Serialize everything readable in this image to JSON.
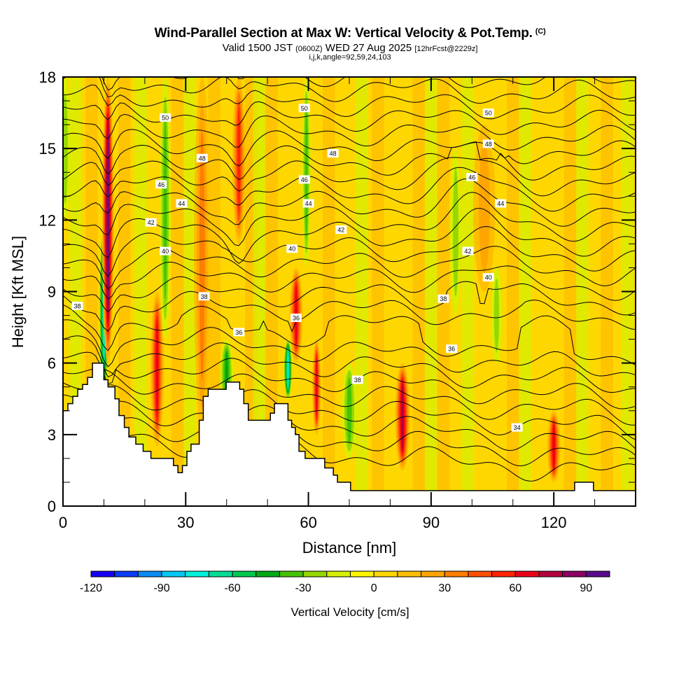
{
  "header": {
    "title": "Wind-Parallel Section at Max W: Vertical Velocity & Pot.Temp.",
    "copyright": "(C)",
    "valid_prefix": "Valid 1500 JST",
    "valid_utc": "(0600Z)",
    "valid_date": "WED 27 Aug 2025",
    "forecast": "[12hrFcst@2229z]",
    "indices": "i,j,k,angle=92,59,24,103"
  },
  "chart_data": {
    "type": "heatmap",
    "title": "Wind-Parallel Section at Max W: Vertical Velocity & Pot.Temp.",
    "xlabel": "Distance [nm]",
    "ylabel": "Height [Kft MSL]",
    "xlim": [
      0,
      140
    ],
    "ylim": [
      0,
      18
    ],
    "x_ticks": [
      0,
      30,
      60,
      90,
      120
    ],
    "y_ticks": [
      0,
      3,
      6,
      9,
      12,
      15,
      18
    ],
    "colorbar": {
      "title": "Vertical Velocity [cm/s]",
      "range": [
        -120,
        100
      ],
      "step": 10,
      "tick_values": [
        -120,
        -90,
        -60,
        -30,
        0,
        30,
        60,
        90
      ],
      "colors": [
        "#1400f5",
        "#0a3cf5",
        "#0a8cf5",
        "#00c8f5",
        "#00f0dc",
        "#00dc96",
        "#00c850",
        "#00aa14",
        "#46c300",
        "#96d700",
        "#d7ef00",
        "#fff500",
        "#ffd700",
        "#ffbe00",
        "#ffa500",
        "#ff7d00",
        "#ff5000",
        "#ff2300",
        "#eb0019",
        "#b4003c",
        "#8c0064",
        "#5a0a8c"
      ]
    },
    "contours": {
      "field": "Potential Temperature",
      "labels": [
        34,
        36,
        38,
        40,
        42,
        44,
        46,
        48,
        50
      ]
    },
    "updraft_streaks": [
      {
        "x": 11,
        "w": 1.6,
        "peak": 95,
        "y0": 6,
        "y1": 18
      },
      {
        "x": 23,
        "w": 1.8,
        "peak": 60,
        "y0": 2.5,
        "y1": 9
      },
      {
        "x": 34,
        "w": 2.2,
        "peak": 30,
        "y0": 3,
        "y1": 18
      },
      {
        "x": 43,
        "w": 1.8,
        "peak": 55,
        "y0": 11,
        "y1": 18
      },
      {
        "x": 57,
        "w": 1.8,
        "peak": 65,
        "y0": 6,
        "y1": 10
      },
      {
        "x": 62,
        "w": 1.2,
        "peak": 60,
        "y0": 3,
        "y1": 7
      },
      {
        "x": 83,
        "w": 2.0,
        "peak": 70,
        "y0": 1.5,
        "y1": 6
      },
      {
        "x": 103,
        "w": 3.0,
        "peak": 25,
        "y0": 9,
        "y1": 16
      },
      {
        "x": 120,
        "w": 1.8,
        "peak": 65,
        "y0": 1,
        "y1": 4
      }
    ],
    "downdraft_streaks": [
      {
        "x": 10,
        "w": 1.3,
        "peak": -75,
        "y0": 4.5,
        "y1": 12
      },
      {
        "x": 25,
        "w": 1.5,
        "peak": -35,
        "y0": 7,
        "y1": 18
      },
      {
        "x": 40,
        "w": 1.8,
        "peak": -40,
        "y0": 4,
        "y1": 7
      },
      {
        "x": 55,
        "w": 1.2,
        "peak": -75,
        "y0": 4.5,
        "y1": 7
      },
      {
        "x": 59.5,
        "w": 1.2,
        "peak": -35,
        "y0": 10,
        "y1": 18
      },
      {
        "x": 70,
        "w": 2.0,
        "peak": -35,
        "y0": 2,
        "y1": 6
      },
      {
        "x": 96,
        "w": 1.5,
        "peak": -25,
        "y0": 8,
        "y1": 15
      },
      {
        "x": 0.5,
        "w": 1.5,
        "peak": -25,
        "y0": 12,
        "y1": 18
      },
      {
        "x": 106,
        "w": 1.4,
        "peak": -25,
        "y0": 6,
        "y1": 10
      }
    ],
    "terrain_kft": [
      [
        0,
        4.0
      ],
      [
        1.2,
        4.0
      ],
      [
        1.2,
        4.3
      ],
      [
        2.4,
        4.3
      ],
      [
        2.4,
        4.6
      ],
      [
        3.6,
        4.6
      ],
      [
        3.6,
        4.9
      ],
      [
        4.8,
        4.9
      ],
      [
        4.8,
        5.1
      ],
      [
        6.0,
        5.1
      ],
      [
        6.0,
        5.4
      ],
      [
        7.2,
        5.4
      ],
      [
        7.2,
        6.0
      ],
      [
        10.0,
        6.0
      ],
      [
        10.0,
        5.3
      ],
      [
        11.0,
        5.3
      ],
      [
        11.0,
        5.0
      ],
      [
        12.7,
        5.0
      ],
      [
        12.7,
        4.5
      ],
      [
        13.7,
        4.5
      ],
      [
        13.7,
        3.8
      ],
      [
        15.0,
        3.8
      ],
      [
        15.0,
        3.3
      ],
      [
        16.1,
        3.3
      ],
      [
        16.1,
        2.9
      ],
      [
        17.8,
        2.9
      ],
      [
        17.8,
        2.6
      ],
      [
        19.6,
        2.6
      ],
      [
        19.6,
        2.3
      ],
      [
        21.5,
        2.3
      ],
      [
        21.5,
        2.0
      ],
      [
        27.0,
        2.0
      ],
      [
        27.0,
        1.7
      ],
      [
        28.1,
        1.7
      ],
      [
        28.1,
        1.4
      ],
      [
        29.2,
        1.4
      ],
      [
        29.2,
        1.7
      ],
      [
        30.3,
        1.7
      ],
      [
        30.3,
        2.3
      ],
      [
        31.3,
        2.3
      ],
      [
        31.3,
        2.6
      ],
      [
        33.3,
        2.6
      ],
      [
        33.3,
        3.6
      ],
      [
        34.3,
        3.6
      ],
      [
        34.3,
        4.6
      ],
      [
        35.5,
        4.6
      ],
      [
        35.5,
        4.9
      ],
      [
        39.9,
        4.9
      ],
      [
        39.9,
        5.2
      ],
      [
        43.2,
        5.2
      ],
      [
        43.2,
        4.9
      ],
      [
        44.2,
        4.9
      ],
      [
        44.2,
        4.3
      ],
      [
        45.3,
        4.3
      ],
      [
        45.3,
        3.6
      ],
      [
        50.7,
        3.6
      ],
      [
        50.7,
        3.9
      ],
      [
        51.7,
        3.9
      ],
      [
        51.7,
        4.3
      ],
      [
        55.0,
        4.3
      ],
      [
        55.0,
        3.6
      ],
      [
        55.9,
        3.6
      ],
      [
        55.9,
        3.3
      ],
      [
        56.8,
        3.3
      ],
      [
        56.8,
        3.0
      ],
      [
        57.7,
        3.0
      ],
      [
        57.7,
        2.3
      ],
      [
        59.2,
        2.3
      ],
      [
        59.2,
        2.0
      ],
      [
        64.0,
        2.0
      ],
      [
        64.0,
        1.6
      ],
      [
        66.1,
        1.6
      ],
      [
        66.1,
        1.3
      ],
      [
        67.1,
        1.3
      ],
      [
        67.1,
        1.0
      ],
      [
        70.3,
        1.0
      ],
      [
        70.3,
        0.65
      ],
      [
        125.1,
        0.65
      ],
      [
        125.1,
        1.0
      ],
      [
        129.7,
        1.0
      ],
      [
        129.7,
        0.65
      ],
      [
        140,
        0.65
      ]
    ]
  }
}
